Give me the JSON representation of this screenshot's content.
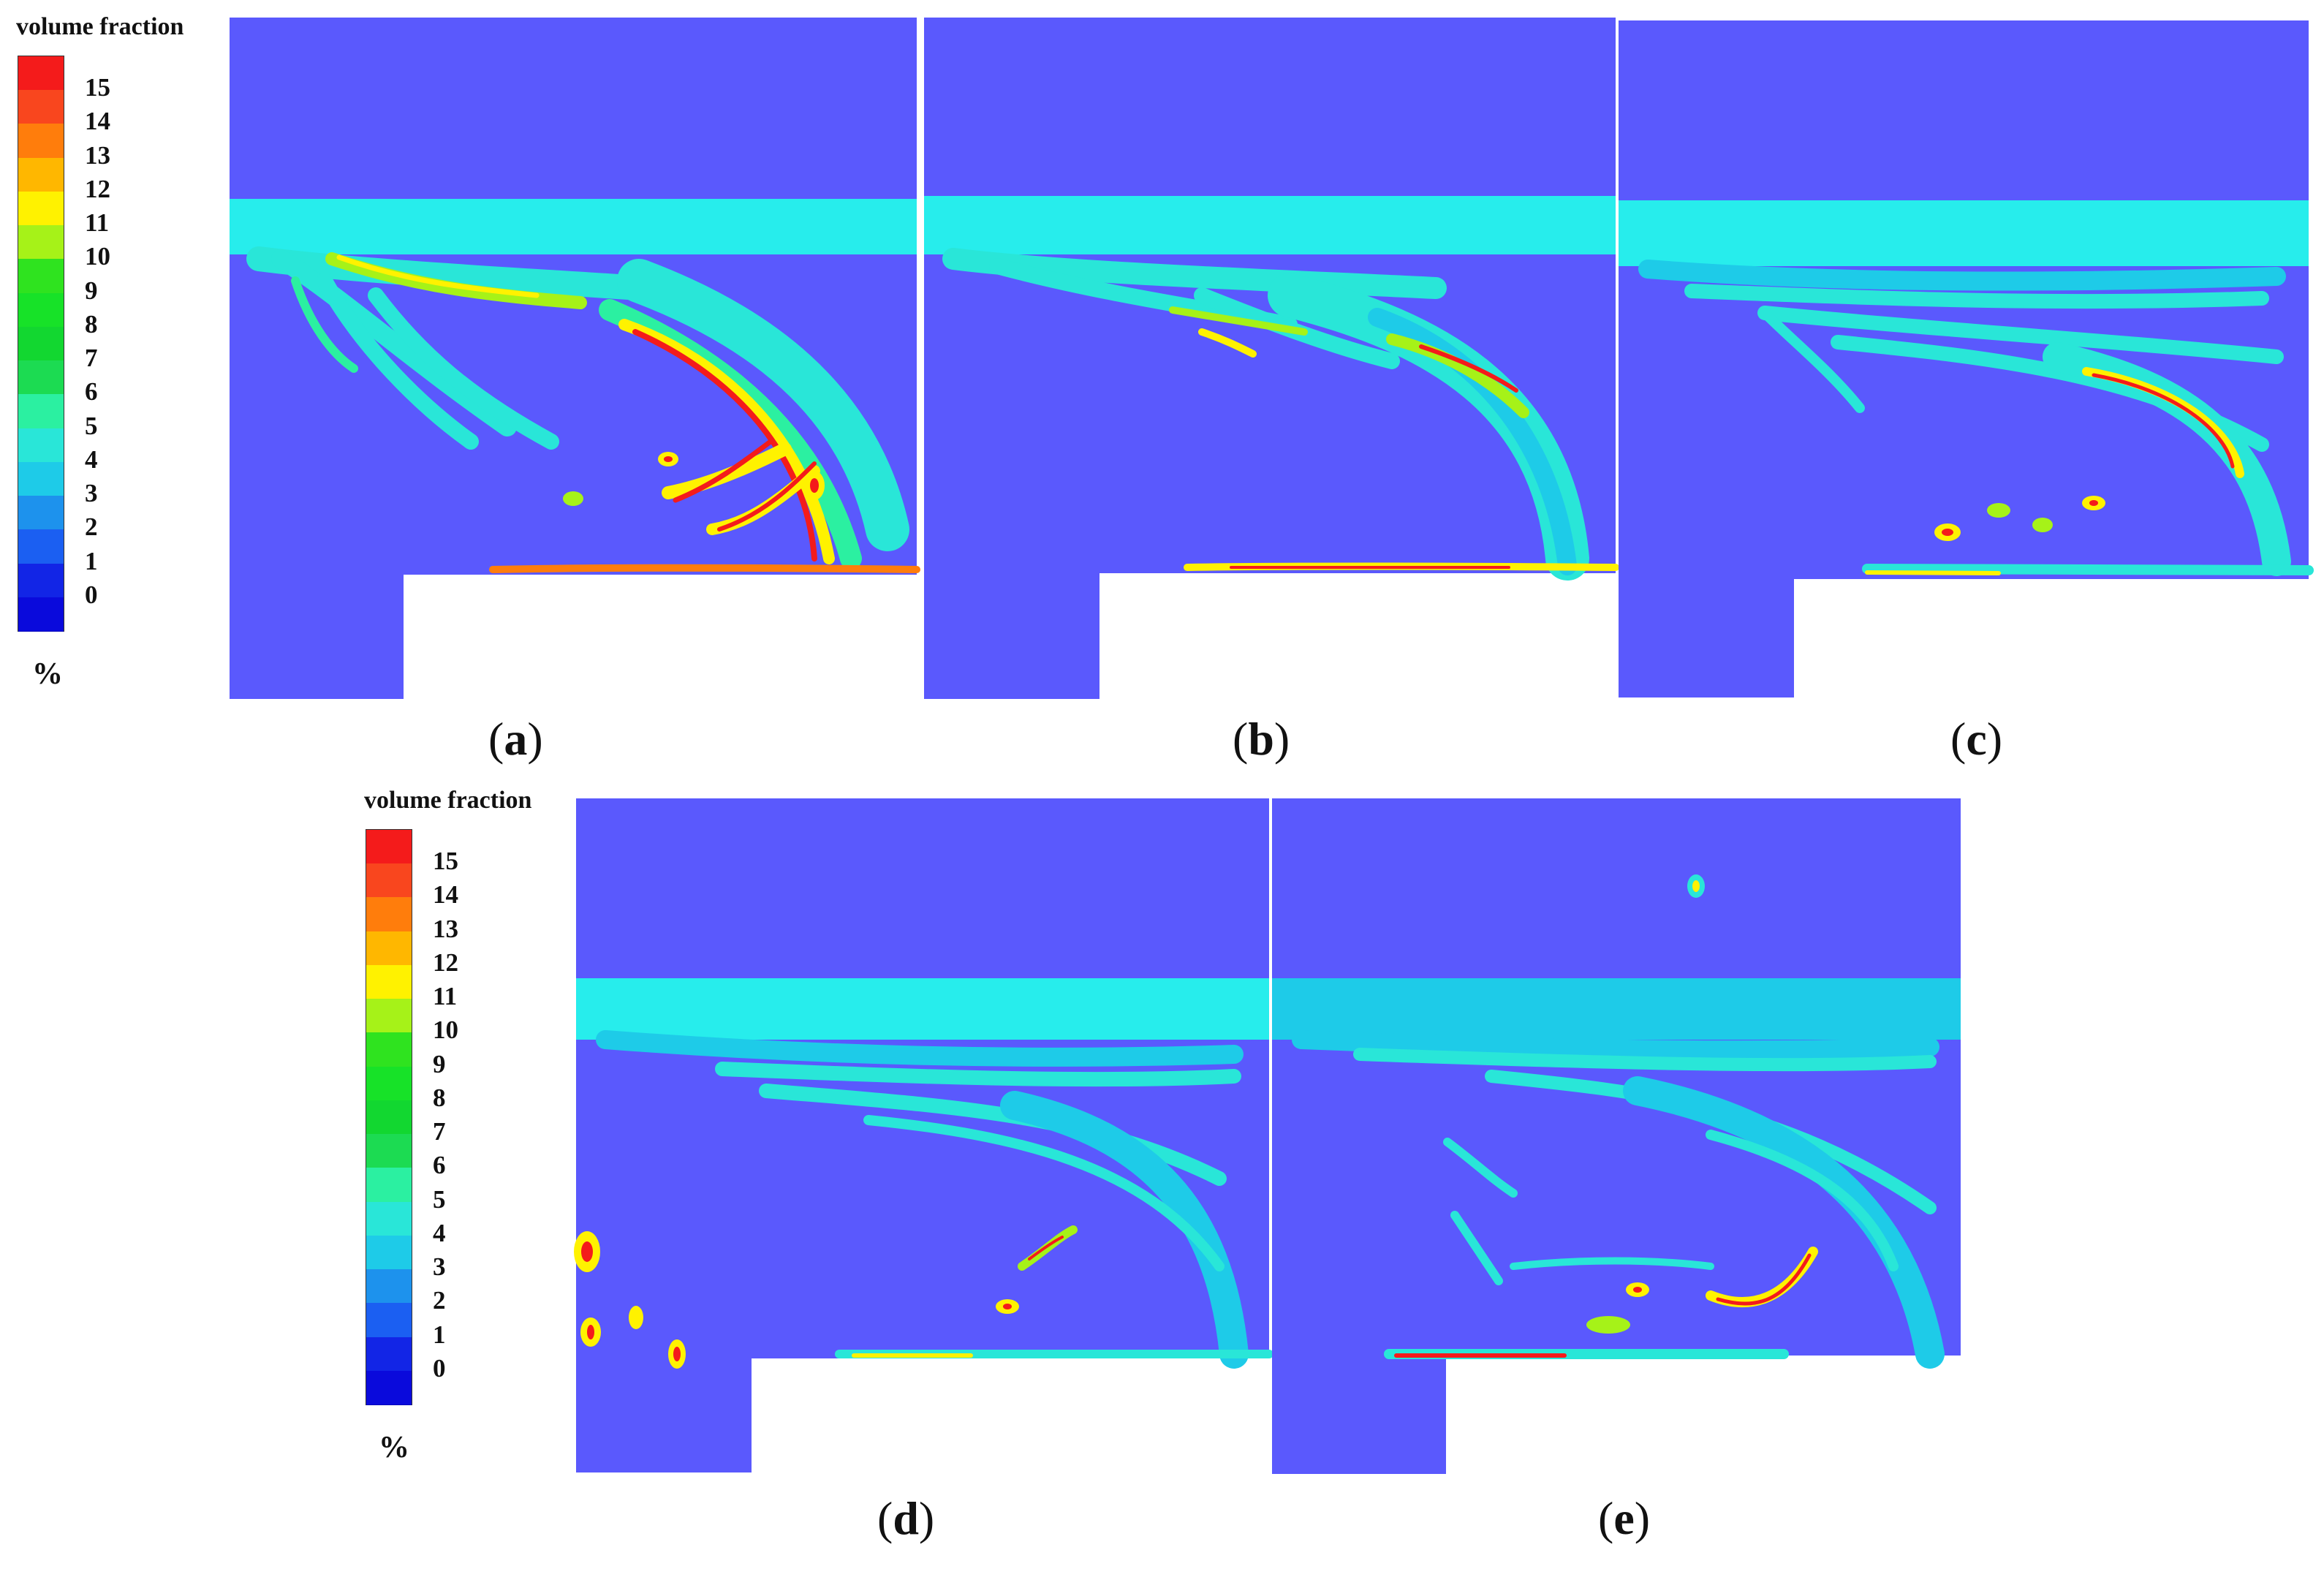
{
  "legend_title": "volume fraction",
  "legend_unit": "%",
  "legend_ticks": [
    "15",
    "14",
    "13",
    "12",
    "11",
    "10",
    "9",
    "8",
    "7",
    "6",
    "5",
    "4",
    "3",
    "2",
    "1",
    "0"
  ],
  "legend_colors": [
    "#f41b1b",
    "#f9461e",
    "#ff7d0c",
    "#ffb700",
    "#fff200",
    "#a6f218",
    "#2fe31f",
    "#17e228",
    "#12d730",
    "#1cdb52",
    "#2bf0a1",
    "#29e6d8",
    "#1ecbe8",
    "#1d92ed",
    "#1b5ff2",
    "#1225e6",
    "#0a0adc"
  ],
  "background_color": "#5a59fd",
  "panels": [
    {
      "letter": "a"
    },
    {
      "letter": "b"
    },
    {
      "letter": "c"
    },
    {
      "letter": "d"
    },
    {
      "letter": "e"
    }
  ]
}
